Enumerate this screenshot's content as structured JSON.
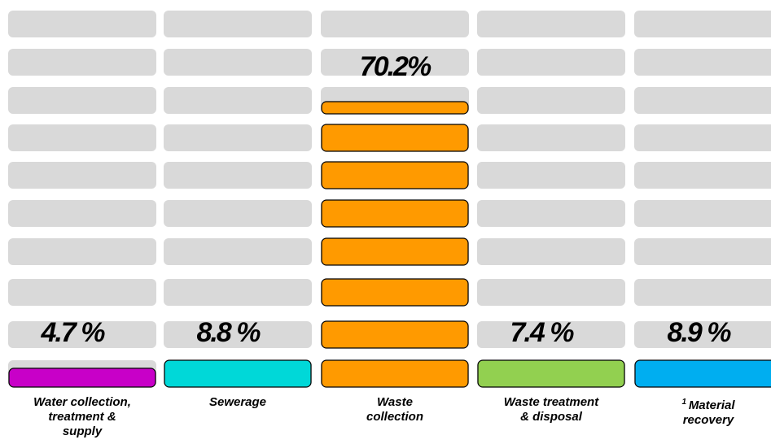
{
  "chart_data": {
    "type": "bar",
    "title": "",
    "xlabel": "",
    "ylabel": "",
    "ylim": [
      0,
      70.2
    ],
    "grid": false,
    "categories": [
      {
        "label": "Water collection,\ntreatment &\nsupply",
        "footnote": ""
      },
      {
        "label": "Sewerage",
        "footnote": ""
      },
      {
        "label": "Waste\ncollection",
        "footnote": ""
      },
      {
        "label": "Waste treatment\n& disposal",
        "footnote": ""
      },
      {
        "label": "Material\nrecovery",
        "footnote": "1"
      }
    ],
    "values": [
      4.7,
      8.8,
      70.2,
      7.4,
      8.9
    ],
    "value_labels": [
      "4.7 %",
      "8.8 %",
      "70.2%",
      "7.4 %",
      "8.9 %"
    ],
    "colors": [
      "#c800c8",
      "#00d8d8",
      "#ff9a00",
      "#92d050",
      "#00aef0"
    ],
    "track_color": "#d9d9d9"
  }
}
